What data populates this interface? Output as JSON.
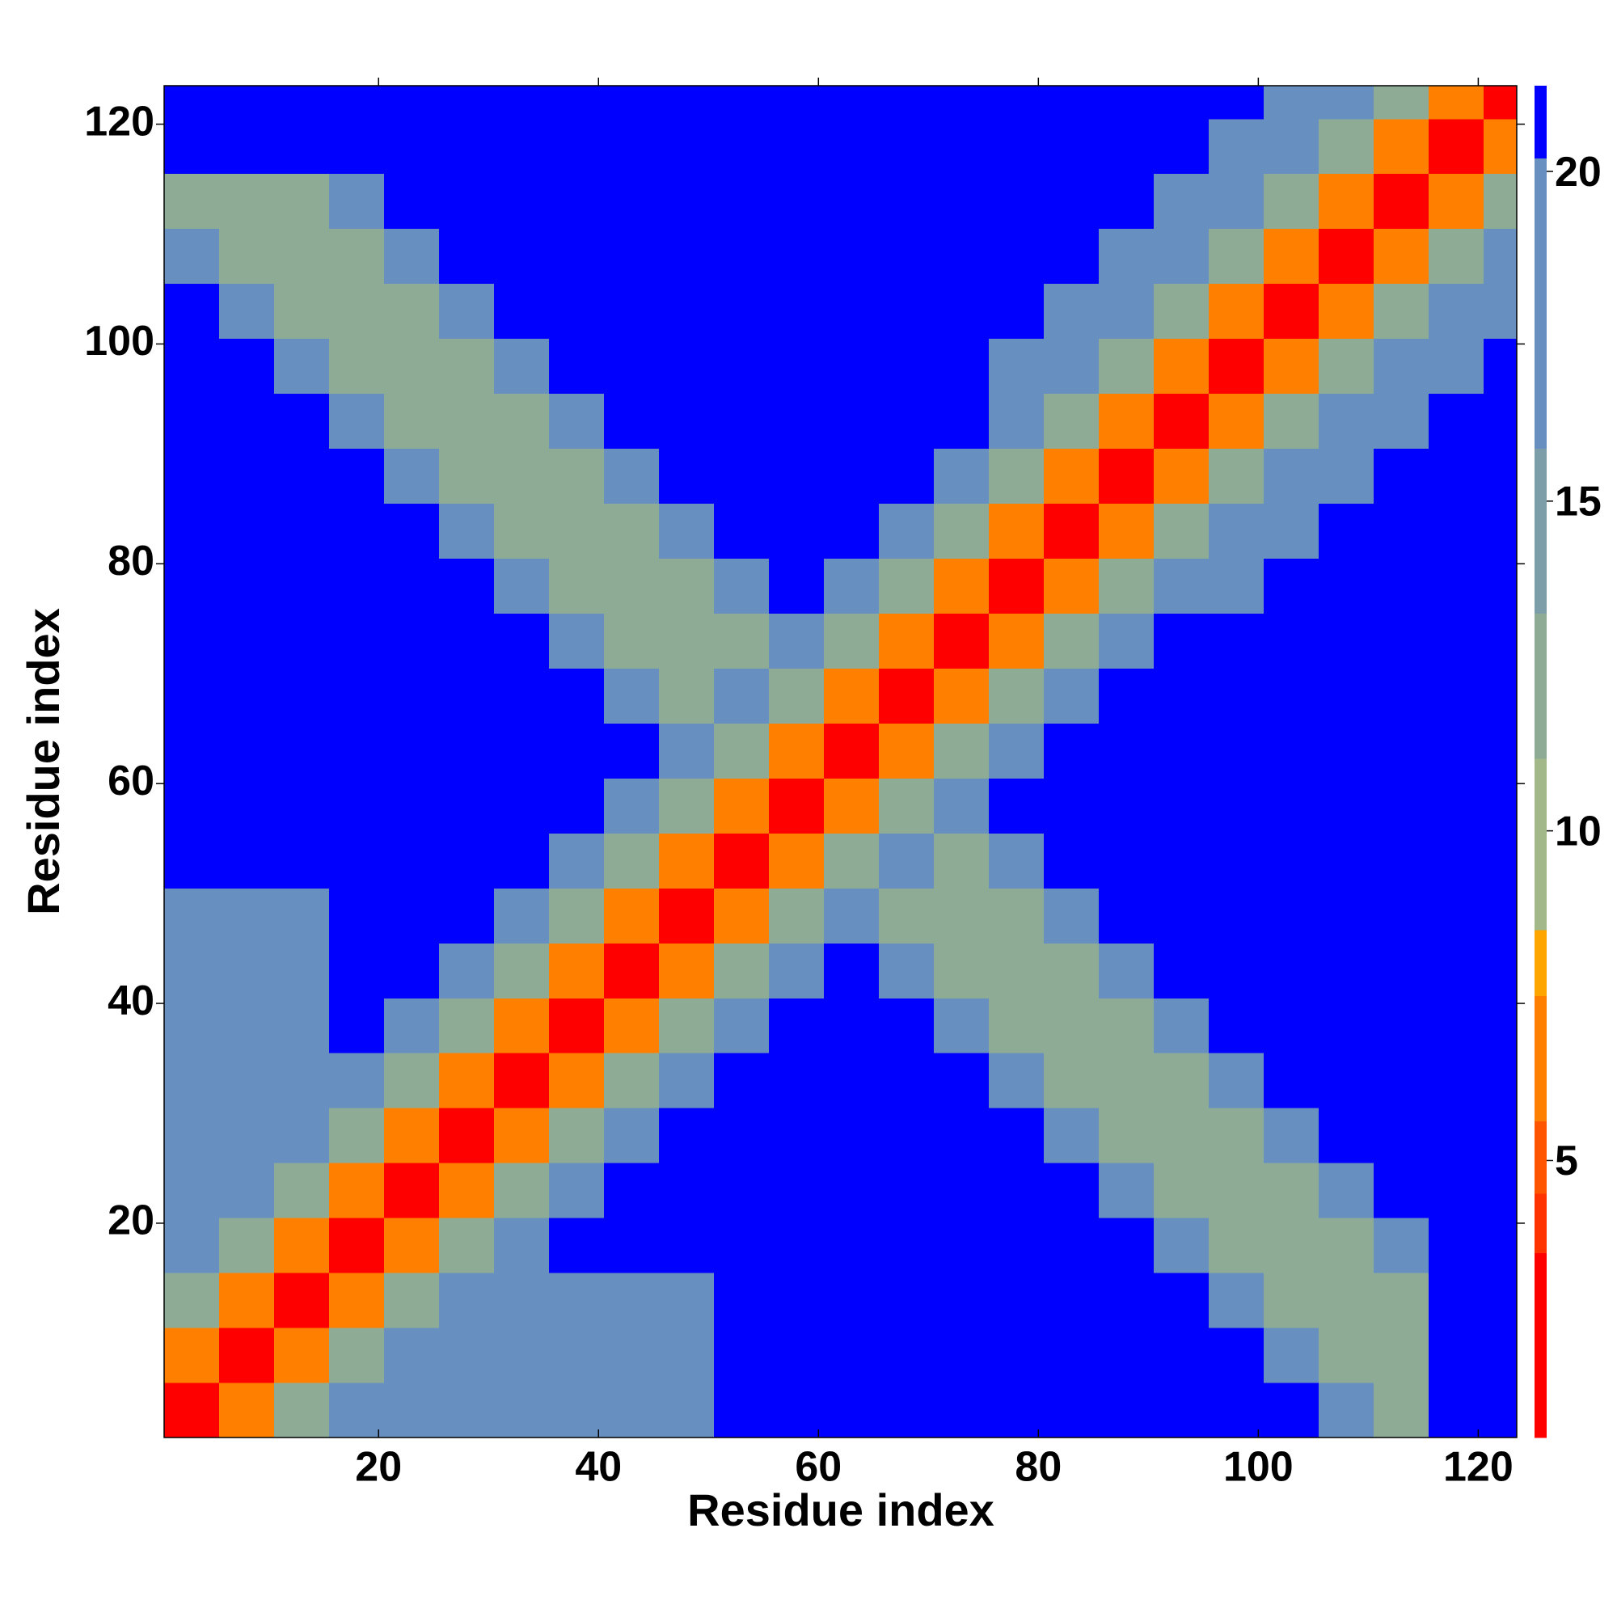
{
  "chart_data": {
    "type": "heatmap",
    "xlabel": "Residue index",
    "ylabel": "Residue index",
    "xbins": [
      0.5,
      5.5,
      10.5,
      15.5,
      20.5,
      25.5,
      30.5,
      35.5,
      40.5,
      45.5,
      50.5,
      55.5,
      60.5,
      65.5,
      70.5,
      75.5,
      80.5,
      85.5,
      90.5,
      95.5,
      100.5,
      105.5,
      110.5,
      115.5,
      120.5,
      123.5
    ],
    "ybins": [
      0.5,
      5.5,
      10.5,
      15.5,
      20.5,
      25.5,
      30.5,
      35.5,
      40.5,
      45.5,
      50.5,
      55.5,
      60.5,
      65.5,
      70.5,
      75.5,
      80.5,
      85.5,
      90.5,
      95.5,
      100.5,
      105.5,
      110.5,
      115.5,
      120.5,
      123.5
    ],
    "xlim": [
      0.5,
      123.5
    ],
    "ylim": [
      0.5,
      123.5
    ],
    "xticks": [
      20,
      40,
      60,
      80,
      100,
      120
    ],
    "yticks": [
      20,
      40,
      60,
      80,
      100,
      120
    ],
    "clim": [
      0.8,
      21.3
    ],
    "cticks": [
      5,
      10,
      15,
      20
    ],
    "colorscale": [
      {
        "value": 0.8,
        "color": "#ff0000"
      },
      {
        "value": 3.6,
        "color": "#ff3300"
      },
      {
        "value": 4.5,
        "color": "#ff5500"
      },
      {
        "value": 5.6,
        "color": "#ff8000"
      },
      {
        "value": 7.5,
        "color": "#ffa500"
      },
      {
        "value": 8.5,
        "color": "#a3b888"
      },
      {
        "value": 11.1,
        "color": "#8eab96"
      },
      {
        "value": 13.3,
        "color": "#7c9ea8"
      },
      {
        "value": 15.8,
        "color": "#6790c0"
      },
      {
        "value": 20.2,
        "color": "#0000ff"
      }
    ],
    "z": [
      [
        3,
        7,
        12,
        18,
        16,
        16,
        16,
        17,
        17,
        17,
        21.5,
        21.5,
        21.5,
        21.5,
        21.5,
        21.5,
        21.5,
        21.5,
        21.5,
        21.5,
        21.5,
        18,
        12,
        21.5,
        21.5
      ],
      [
        7,
        3,
        7,
        12,
        18,
        16,
        16,
        17,
        17,
        17,
        21.5,
        21.5,
        21.5,
        21.5,
        21.5,
        21.5,
        21.5,
        21.5,
        21.5,
        21.5,
        18,
        12,
        12,
        21.5,
        21.5
      ],
      [
        12,
        7,
        3,
        7,
        12,
        18,
        16,
        17,
        17,
        17,
        21.5,
        21.5,
        21.5,
        21.5,
        21.5,
        21.5,
        21.5,
        21.5,
        21.5,
        18,
        12,
        12,
        12,
        21.5,
        21.5
      ],
      [
        18,
        12,
        7,
        3,
        7,
        12,
        18,
        21.5,
        21.5,
        21.5,
        21.5,
        21.5,
        21.5,
        21.5,
        21.5,
        21.5,
        21.5,
        21.5,
        18,
        12,
        12,
        12,
        18,
        21.5,
        21.5
      ],
      [
        16,
        18,
        12,
        7,
        3,
        7,
        12,
        18,
        21.5,
        21.5,
        21.5,
        21.5,
        21.5,
        21.5,
        21.5,
        21.5,
        21.5,
        18,
        12,
        12,
        12,
        18,
        21.5,
        21.5,
        21.5
      ],
      [
        16,
        16,
        18,
        12,
        7,
        3,
        7,
        12,
        18,
        21.5,
        21.5,
        21.5,
        21.5,
        21.5,
        21.5,
        21.5,
        18,
        12,
        12,
        12,
        18,
        21.5,
        21.5,
        21.5,
        21.5
      ],
      [
        16,
        16,
        16,
        18,
        12,
        7,
        3,
        7,
        12,
        18,
        21.5,
        21.5,
        21.5,
        21.5,
        21.5,
        18,
        12,
        12,
        12,
        18,
        21.5,
        21.5,
        21.5,
        21.5,
        21.5
      ],
      [
        17,
        17,
        17,
        21.5,
        18,
        12,
        7,
        3,
        7,
        12,
        18,
        21.5,
        21.5,
        21.5,
        18,
        12,
        12,
        12,
        18,
        21.5,
        21.5,
        21.5,
        21.5,
        21.5,
        21.5
      ],
      [
        17,
        17,
        17,
        21.5,
        21.5,
        18,
        12,
        7,
        3,
        7,
        12,
        18,
        21.5,
        18,
        12,
        12,
        12,
        18,
        21.5,
        21.5,
        21.5,
        21.5,
        21.5,
        21.5,
        21.5
      ],
      [
        17,
        17,
        17,
        21.5,
        21.5,
        21.5,
        18,
        12,
        7,
        3,
        7,
        12,
        18,
        12,
        12,
        12,
        18,
        21.5,
        21.5,
        21.5,
        21.5,
        21.5,
        21.5,
        21.5,
        21.5
      ],
      [
        21.5,
        21.5,
        21.5,
        21.5,
        21.5,
        21.5,
        21.5,
        18,
        12,
        7,
        3,
        7,
        12,
        18,
        12,
        18,
        21.5,
        21.5,
        21.5,
        21.5,
        21.5,
        21.5,
        21.5,
        21.5,
        21.5
      ],
      [
        21.5,
        21.5,
        21.5,
        21.5,
        21.5,
        21.5,
        21.5,
        21.5,
        18,
        12,
        7,
        3,
        7,
        12,
        18,
        21.5,
        21.5,
        21.5,
        21.5,
        21.5,
        21.5,
        21.5,
        21.5,
        21.5,
        21.5
      ],
      [
        21.5,
        21.5,
        21.5,
        21.5,
        21.5,
        21.5,
        21.5,
        21.5,
        21.5,
        18,
        12,
        7,
        3,
        7,
        12,
        18,
        21.5,
        21.5,
        21.5,
        21.5,
        21.5,
        21.5,
        21.5,
        21.5,
        21.5
      ],
      [
        21.5,
        21.5,
        21.5,
        21.5,
        21.5,
        21.5,
        21.5,
        21.5,
        18,
        12,
        18,
        12,
        7,
        3,
        7,
        12,
        18,
        21.5,
        21.5,
        21.5,
        21.5,
        21.5,
        21.5,
        21.5,
        21.5
      ],
      [
        21.5,
        21.5,
        21.5,
        21.5,
        21.5,
        21.5,
        21.5,
        18,
        12,
        12,
        12,
        18,
        12,
        7,
        3,
        7,
        12,
        18,
        21.5,
        21.5,
        21.5,
        21.5,
        21.5,
        21.5,
        21.5
      ],
      [
        21.5,
        21.5,
        21.5,
        21.5,
        21.5,
        21.5,
        18,
        12,
        12,
        12,
        18,
        21.5,
        18,
        12,
        7,
        3,
        7,
        12,
        18,
        18,
        21.5,
        21.5,
        21.5,
        21.5,
        21.5
      ],
      [
        21.5,
        21.5,
        21.5,
        21.5,
        21.5,
        18,
        12,
        12,
        12,
        18,
        21.5,
        21.5,
        21.5,
        18,
        12,
        7,
        3,
        7,
        12,
        18,
        18,
        21.5,
        21.5,
        21.5,
        21.5
      ],
      [
        21.5,
        21.5,
        21.5,
        21.5,
        18,
        12,
        12,
        12,
        18,
        21.5,
        21.5,
        21.5,
        21.5,
        21.5,
        18,
        12,
        7,
        3,
        7,
        12,
        18,
        18,
        21.5,
        21.5,
        21.5
      ],
      [
        21.5,
        21.5,
        21.5,
        18,
        12,
        12,
        12,
        18,
        21.5,
        21.5,
        21.5,
        21.5,
        21.5,
        21.5,
        21.5,
        18,
        12,
        7,
        3,
        7,
        12,
        18,
        18,
        21.5,
        21.5
      ],
      [
        21.5,
        21.5,
        18,
        12,
        12,
        12,
        18,
        21.5,
        21.5,
        21.5,
        21.5,
        21.5,
        21.5,
        21.5,
        21.5,
        18,
        18,
        12,
        7,
        3,
        7,
        12,
        18,
        18,
        21.5
      ],
      [
        21.5,
        18,
        12,
        12,
        12,
        18,
        21.5,
        21.5,
        21.5,
        21.5,
        21.5,
        21.5,
        21.5,
        21.5,
        21.5,
        21.5,
        18,
        18,
        12,
        7,
        3,
        7,
        12,
        18,
        18
      ],
      [
        18,
        12,
        12,
        12,
        18,
        21.5,
        21.5,
        21.5,
        21.5,
        21.5,
        21.5,
        21.5,
        21.5,
        21.5,
        21.5,
        21.5,
        21.5,
        18,
        18,
        12,
        7,
        3,
        7,
        12,
        18
      ],
      [
        12,
        12,
        12,
        18,
        21.5,
        21.5,
        21.5,
        21.5,
        21.5,
        21.5,
        21.5,
        21.5,
        21.5,
        21.5,
        21.5,
        21.5,
        21.5,
        21.5,
        18,
        18,
        12,
        7,
        3,
        7,
        12
      ],
      [
        21.5,
        21.5,
        21.5,
        21.5,
        21.5,
        21.5,
        21.5,
        21.5,
        21.5,
        21.5,
        21.5,
        21.5,
        21.5,
        21.5,
        21.5,
        21.5,
        21.5,
        21.5,
        21.5,
        18,
        18,
        12,
        7,
        3,
        7
      ],
      [
        21.5,
        21.5,
        21.5,
        21.5,
        21.5,
        21.5,
        21.5,
        21.5,
        21.5,
        21.5,
        21.5,
        21.5,
        21.5,
        21.5,
        21.5,
        21.5,
        21.5,
        21.5,
        21.5,
        21.5,
        18,
        18,
        12,
        7,
        3
      ]
    ]
  }
}
